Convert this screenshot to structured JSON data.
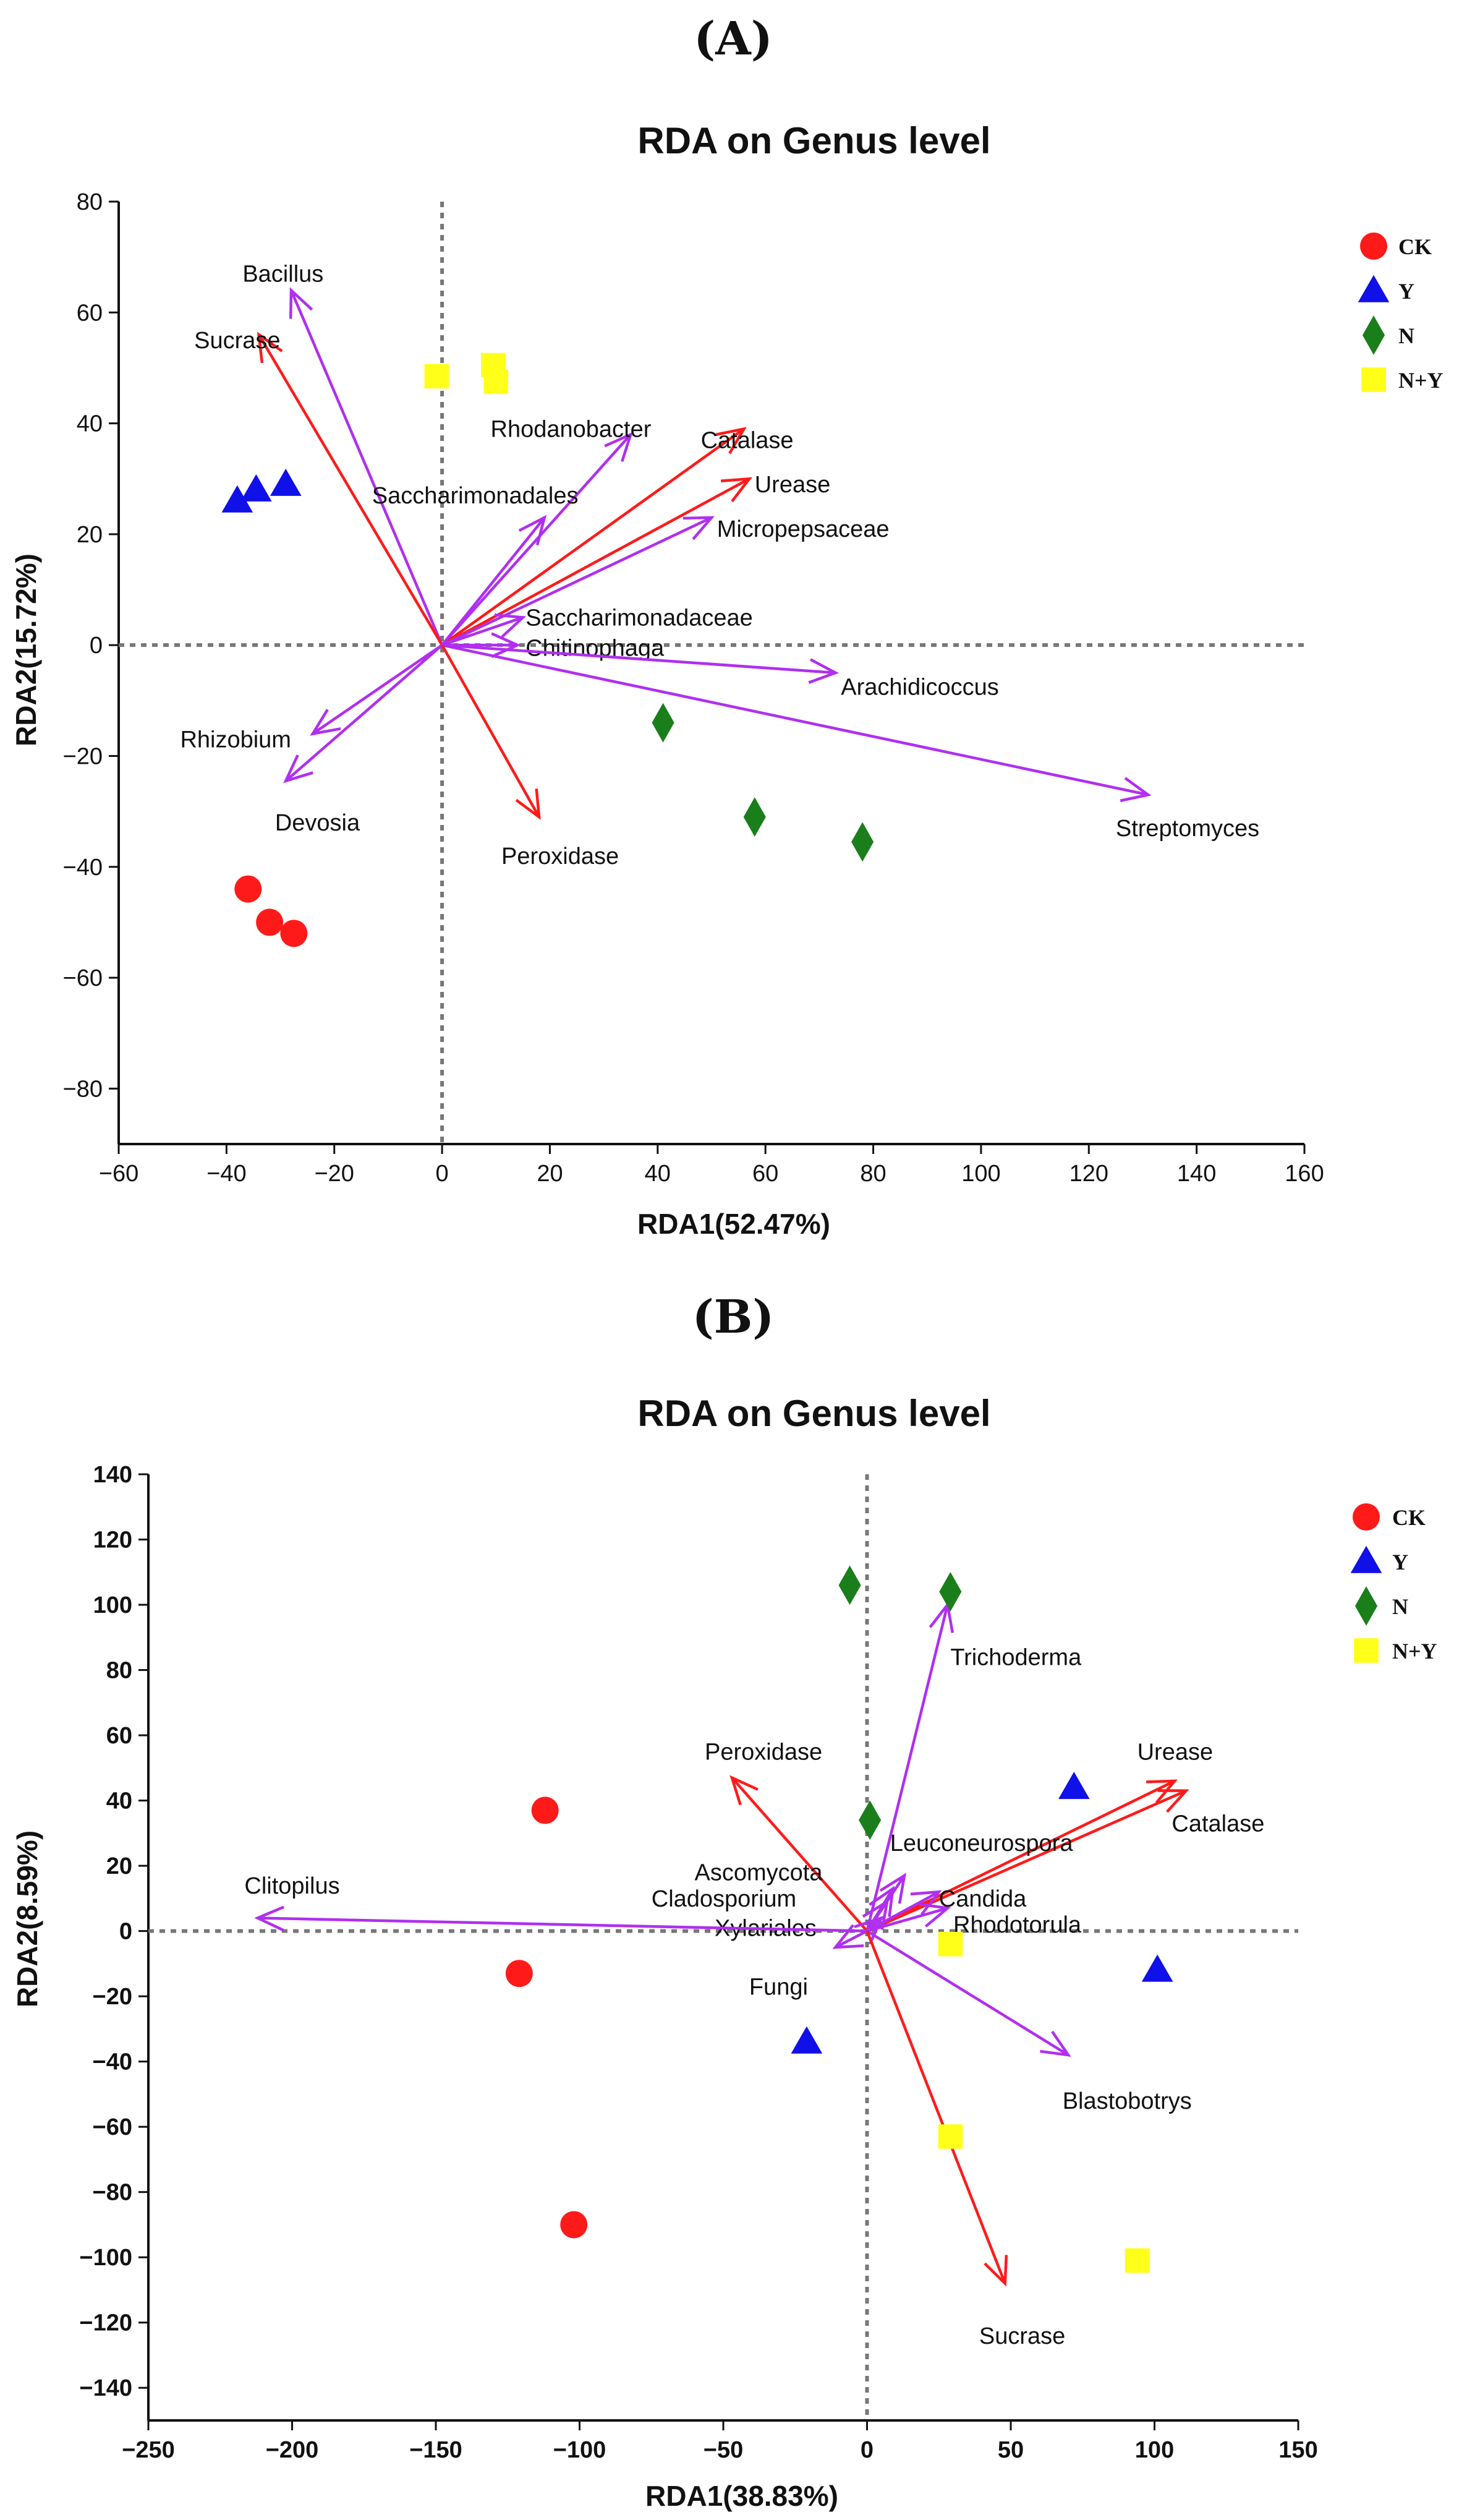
{
  "colors": {
    "env_arrow": "#ff1a1a",
    "species_arrow": "#b02ff0",
    "origin_line": "#777777",
    "CK": "#ff1a1a",
    "Y": "#1010e8",
    "N": "#1a7f1a",
    "N+Y": "#ffff1a"
  },
  "chart_data": [
    {
      "panel": "(A)",
      "type": "scatter",
      "title": "RDA on Genus level",
      "xlabel": "RDA1(52.47%)",
      "ylabel": "RDA2(15.72%)",
      "xlim": [
        -60,
        160
      ],
      "ylim": [
        -90,
        80
      ],
      "xticks": [
        -60,
        -40,
        -20,
        0,
        20,
        40,
        60,
        80,
        100,
        120,
        140,
        160
      ],
      "yticks": [
        -80,
        -60,
        -40,
        -20,
        0,
        20,
        40,
        60,
        80
      ],
      "legend": [
        {
          "name": "CK",
          "shape": "circle"
        },
        {
          "name": "Y",
          "shape": "triangle"
        },
        {
          "name": "N",
          "shape": "diamond"
        },
        {
          "name": "N+Y",
          "shape": "square"
        }
      ],
      "legend_position": "right",
      "series": [
        {
          "name": "CK",
          "shape": "circle",
          "points": [
            [
              -36,
              -44
            ],
            [
              -32,
              -50
            ],
            [
              -27.5,
              -52
            ]
          ]
        },
        {
          "name": "Y",
          "shape": "triangle",
          "points": [
            [
              -38,
              26
            ],
            [
              -34.5,
              28
            ],
            [
              -29,
              29
            ]
          ]
        },
        {
          "name": "N",
          "shape": "diamond",
          "points": [
            [
              41,
              -14
            ],
            [
              58,
              -31
            ],
            [
              78,
              -35.5
            ]
          ]
        },
        {
          "name": "N+Y",
          "shape": "square",
          "points": [
            [
              -1,
              48.5
            ],
            [
              9.5,
              50.5
            ],
            [
              10,
              47.5
            ]
          ]
        }
      ],
      "arrows": [
        {
          "label": "Bacillus",
          "kind": "species",
          "x": -28,
          "y": 64,
          "lx": -22,
          "ly": 67,
          "anchor": "end"
        },
        {
          "label": "Sucrase",
          "kind": "env",
          "x": -34,
          "y": 56,
          "lx": -30,
          "ly": 55,
          "anchor": "end"
        },
        {
          "label": "Rhodanobacter",
          "kind": "species",
          "x": 35,
          "y": 38,
          "lx": 9,
          "ly": 39,
          "anchor": "start"
        },
        {
          "label": "Catalase",
          "kind": "env",
          "x": 56,
          "y": 39,
          "lx": 48,
          "ly": 37,
          "anchor": "start"
        },
        {
          "label": "Urease",
          "kind": "env",
          "x": 57,
          "y": 30,
          "lx": 58,
          "ly": 29,
          "anchor": "start"
        },
        {
          "label": "Saccharimonadales",
          "kind": "species",
          "x": 19,
          "y": 23,
          "lx": -13,
          "ly": 27,
          "anchor": "start"
        },
        {
          "label": "Micropepsaceae",
          "kind": "species",
          "x": 50,
          "y": 23,
          "lx": 51,
          "ly": 21,
          "anchor": "start"
        },
        {
          "label": "Saccharimonadaceae",
          "kind": "species",
          "x": 15,
          "y": 5,
          "lx": 15.5,
          "ly": 5,
          "anchor": "start"
        },
        {
          "label": "Chitinophaga",
          "kind": "species",
          "x": 14,
          "y": 0,
          "lx": 15.5,
          "ly": -0.5,
          "anchor": "start"
        },
        {
          "label": "Arachidicoccus",
          "kind": "species",
          "x": 73,
          "y": -5,
          "lx": 74,
          "ly": -7.5,
          "anchor": "start"
        },
        {
          "label": "Streptomyces",
          "kind": "species",
          "x": 131,
          "y": -27,
          "lx": 125,
          "ly": -33,
          "anchor": "start"
        },
        {
          "label": "Rhizobium",
          "kind": "species",
          "x": -24,
          "y": -16,
          "lx": -28,
          "ly": -17,
          "anchor": "end"
        },
        {
          "label": "Devosia",
          "kind": "species",
          "x": -29,
          "y": -24.5,
          "lx": -31,
          "ly": -32,
          "anchor": "start"
        },
        {
          "label": "Peroxidase",
          "kind": "env",
          "x": 18,
          "y": -31,
          "lx": 11,
          "ly": -38,
          "anchor": "start"
        }
      ]
    },
    {
      "panel": "(B)",
      "type": "scatter",
      "title": "RDA on Genus level",
      "xlabel": "RDA1(38.83%)",
      "ylabel": "RDA2(8.59%)",
      "xlim": [
        -250,
        150
      ],
      "ylim": [
        -150,
        140
      ],
      "xticks": [
        -250,
        -200,
        -150,
        -100,
        -50,
        0,
        50,
        100,
        150
      ],
      "yticks": [
        -140,
        -120,
        -100,
        -80,
        -60,
        -40,
        -20,
        0,
        20,
        40,
        60,
        80,
        100,
        120,
        140
      ],
      "legend": [
        {
          "name": "CK",
          "shape": "circle"
        },
        {
          "name": "Y",
          "shape": "triangle"
        },
        {
          "name": "N",
          "shape": "diamond"
        },
        {
          "name": "N+Y",
          "shape": "square"
        }
      ],
      "legend_position": "right",
      "series": [
        {
          "name": "CK",
          "shape": "circle",
          "points": [
            [
              -112,
              37
            ],
            [
              -121,
              -13
            ],
            [
              -102,
              -90
            ]
          ]
        },
        {
          "name": "Y",
          "shape": "triangle",
          "points": [
            [
              72,
              44
            ],
            [
              101,
              -12
            ],
            [
              -21,
              -34
            ]
          ]
        },
        {
          "name": "N",
          "shape": "diamond",
          "points": [
            [
              -6,
              106
            ],
            [
              29,
              104
            ],
            [
              1,
              34
            ]
          ]
        },
        {
          "name": "N+Y",
          "shape": "square",
          "points": [
            [
              29,
              -4
            ],
            [
              29,
              -63
            ],
            [
              94,
              -101
            ]
          ]
        }
      ],
      "arrows": [
        {
          "label": "Trichoderma",
          "kind": "species",
          "x": 28,
          "y": 100,
          "lx": 29,
          "ly": 84,
          "anchor": "start"
        },
        {
          "label": "Peroxidase",
          "kind": "env",
          "x": -47,
          "y": 47,
          "lx": -36,
          "ly": 55,
          "anchor": "middle"
        },
        {
          "label": "Urease",
          "kind": "env",
          "x": 107,
          "y": 46,
          "lx": 94,
          "ly": 55,
          "anchor": "start"
        },
        {
          "label": "Catalase",
          "kind": "env",
          "x": 111,
          "y": 43,
          "lx": 106,
          "ly": 33,
          "anchor": "start"
        },
        {
          "label": "Leuconeurospora",
          "kind": "species",
          "x": 13,
          "y": 17,
          "lx": 8,
          "ly": 27,
          "anchor": "start"
        },
        {
          "label": "Ascomycota",
          "kind": "species",
          "x": 9,
          "y": 13,
          "lx": -60,
          "ly": 18,
          "anchor": "start"
        },
        {
          "label": "Candida",
          "kind": "species",
          "x": 25,
          "y": 12,
          "lx": 25,
          "ly": 10,
          "anchor": "start"
        },
        {
          "label": "Cladosporium",
          "kind": "species",
          "x": 7,
          "y": 9,
          "lx": -75,
          "ly": 10,
          "anchor": "start"
        },
        {
          "label": "Xylariales",
          "kind": "species",
          "x": 5,
          "y": 4,
          "lx": -53,
          "ly": 1,
          "anchor": "start"
        },
        {
          "label": "Rhodotorula",
          "kind": "species",
          "x": 28,
          "y": 7,
          "lx": 30,
          "ly": 2,
          "anchor": "start"
        },
        {
          "label": "Fungi",
          "kind": "species",
          "x": -11,
          "y": -5,
          "lx": -41,
          "ly": -17,
          "anchor": "start"
        },
        {
          "label": "Clitopilus",
          "kind": "species",
          "x": -212,
          "y": 4,
          "lx": -200,
          "ly": 14,
          "anchor": "middle"
        },
        {
          "label": "Blastobotrys",
          "kind": "species",
          "x": 70,
          "y": -38,
          "lx": 68,
          "ly": -52,
          "anchor": "start"
        },
        {
          "label": "Sucrase",
          "kind": "env",
          "x": 48,
          "y": -108,
          "lx": 39,
          "ly": -124,
          "anchor": "start"
        }
      ]
    }
  ]
}
